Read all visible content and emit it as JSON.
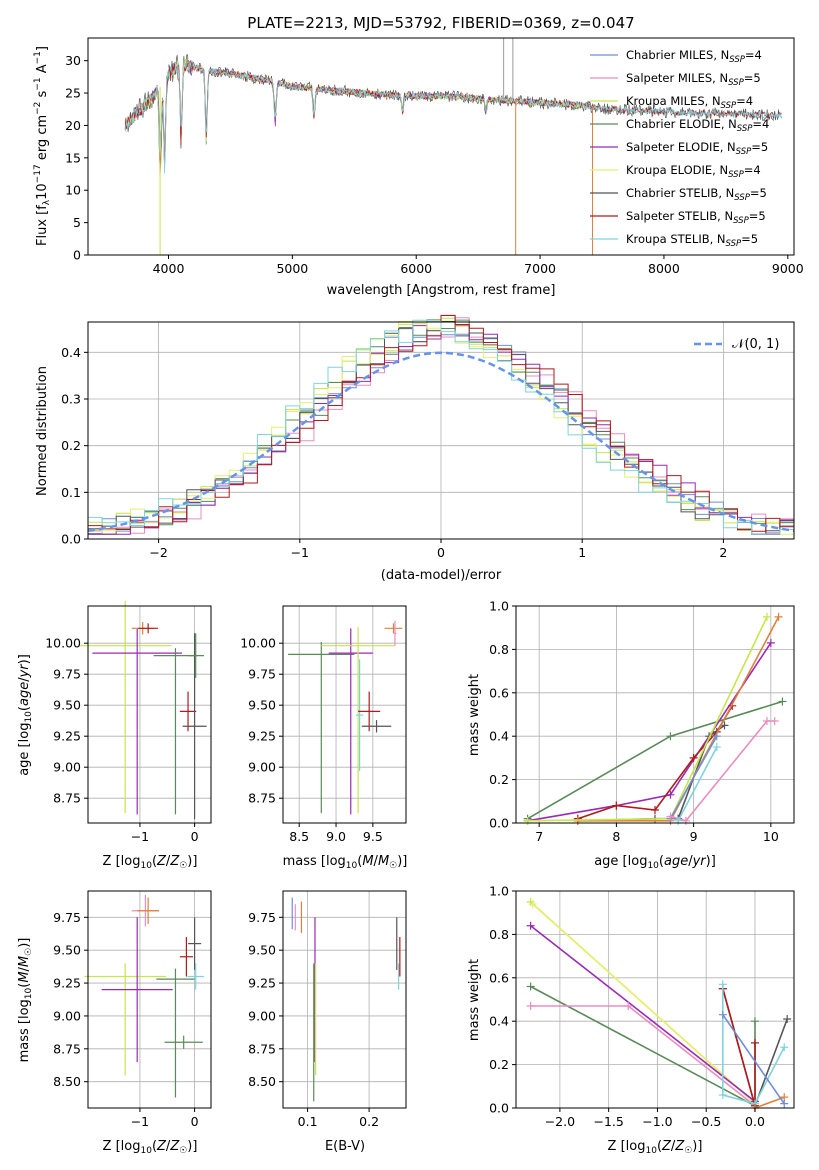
{
  "title": "PLATE=2213, MJD=53792, FIBERID=0369, z=0.047",
  "colors": {
    "chabrier_miles": "#6d8fd6",
    "salpeter_miles": "#e88ec0",
    "kroupa_miles": "#c6e64a",
    "chabrier_elodie": "#5a8a5a",
    "salpeter_elodie": "#9b29b5",
    "kroupa_elodie": "#e8ee70",
    "chabrier_stelib": "#555555",
    "salpeter_stelib": "#b11b1b",
    "kroupa_stelib": "#7fd3dc",
    "orange_model": "#e0803a",
    "gaussian": "#6495ed",
    "grid": "#b0b0b0"
  },
  "chart_data": [
    {
      "id": "spectrum",
      "type": "line",
      "title": "PLATE=2213, MJD=53792, FIBERID=0369, z=0.047",
      "xlabel": "wavelength [Angstrom, rest frame]",
      "ylabel": "Flux [f_λ 10^-17 erg cm^-2 s^-1 A^-1]",
      "xlim": [
        3350,
        9050
      ],
      "ylim": [
        0,
        33.5
      ],
      "xticks": [
        4000,
        5000,
        6000,
        7000,
        8000,
        9000
      ],
      "yticks": [
        0,
        5,
        10,
        15,
        20,
        25,
        30
      ],
      "legend": "top-right",
      "series": [
        {
          "name": "Chabrier MILES, N_SSP=4",
          "color": "#6d8fd6"
        },
        {
          "name": "Salpeter MILES, N_SSP=5",
          "color": "#e88ec0"
        },
        {
          "name": "Kroupa MILES, N_SSP=4",
          "color": "#c6e64a"
        },
        {
          "name": "Chabrier ELODIE, N_SSP=4",
          "color": "#5a8a5a"
        },
        {
          "name": "Salpeter ELODIE, N_SSP=5",
          "color": "#9b29b5"
        },
        {
          "name": "Kroupa ELODIE, N_SSP=4",
          "color": "#e8ee70"
        },
        {
          "name": "Chabrier STELIB, N_SSP=5",
          "color": "#555555"
        },
        {
          "name": "Salpeter STELIB, N_SSP=5",
          "color": "#b11b1b"
        },
        {
          "name": "Kroupa STELIB, N_SSP=5",
          "color": "#7fd3dc"
        }
      ],
      "continuum": [
        [
          3650,
          20
        ],
        [
          3780,
          22.5
        ],
        [
          3900,
          25
        ],
        [
          4000,
          28
        ],
        [
          4100,
          29.5
        ],
        [
          4300,
          28.5
        ],
        [
          4500,
          28
        ],
        [
          4800,
          27
        ],
        [
          5000,
          26
        ],
        [
          5300,
          25.5
        ],
        [
          5600,
          25
        ],
        [
          6000,
          24.5
        ],
        [
          6300,
          24.5
        ],
        [
          6600,
          24
        ],
        [
          7000,
          23.5
        ],
        [
          7400,
          23
        ]
      ],
      "red_tail": [
        [
          7400,
          22.7
        ],
        [
          7700,
          22.4
        ],
        [
          8100,
          22
        ],
        [
          8500,
          21.8
        ],
        [
          8900,
          21.6
        ]
      ],
      "absorptions": [
        [
          3934,
          12
        ],
        [
          3969,
          13
        ],
        [
          4102,
          17
        ],
        [
          4305,
          17
        ],
        [
          4861,
          20
        ],
        [
          5175,
          21
        ],
        [
          5890,
          22
        ],
        [
          6563,
          22
        ]
      ],
      "spikes": [
        [
          3932,
          0
        ],
        [
          6803,
          0
        ],
        [
          7423,
          0
        ]
      ],
      "emission_spikes": [
        [
          6705,
          33.5
        ],
        [
          6780,
          33.5
        ]
      ]
    },
    {
      "id": "residuals",
      "type": "step",
      "xlabel": "(data-model)/error",
      "ylabel": "Normed distribution",
      "xlim": [
        -2.5,
        2.5
      ],
      "ylim": [
        0,
        0.465
      ],
      "xticks": [
        -2,
        -1,
        0,
        1,
        2
      ],
      "yticks": [
        0.0,
        0.1,
        0.2,
        0.3,
        0.4
      ],
      "legend": "top-right",
      "gaussian_label": "𝒩(0, 1)",
      "bin_width": 0.1
    },
    {
      "id": "age_vs_Z",
      "type": "errorbar",
      "xlabel": "Z [log10(Z/Z☉)]",
      "ylabel": "age [log10(age/yr)]",
      "xlim": [
        -1.95,
        0.3
      ],
      "ylim": [
        8.55,
        10.3
      ],
      "xticks": [
        -1,
        0
      ],
      "yticks": [
        8.75,
        9.0,
        9.25,
        9.5,
        9.75,
        10.0
      ],
      "points": [
        {
          "x": -1.27,
          "y": 9.98,
          "xerr": 0.85,
          "yerr": 0.36,
          "ylo": 1.35,
          "color": "#c6e64a"
        },
        {
          "x": -1.05,
          "y": 9.92,
          "xerr": 0.82,
          "yerr": 0.2,
          "ylo": 1.3,
          "color": "#9b29b5"
        },
        {
          "x": -0.95,
          "y": 10.12,
          "xerr": 0.2,
          "yerr": 0.05,
          "color": "#e0803a"
        },
        {
          "x": -0.85,
          "y": 10.12,
          "xerr": 0.18,
          "yerr": 0.04,
          "color": "#b11b1b"
        },
        {
          "x": -0.35,
          "y": 9.9,
          "xerr": 0.4,
          "yerr": 0.06,
          "ylo": 1.28,
          "color": "#5a8a5a"
        },
        {
          "x": -0.12,
          "y": 9.45,
          "xerr": 0.15,
          "yerr": 0.16,
          "color": "#b11b1b"
        },
        {
          "x": 0.0,
          "y": 9.33,
          "xerr": 0.22,
          "yerr": 0.75,
          "color": "#555555"
        },
        {
          "x": 0.02,
          "y": 9.9,
          "xerr": 0.15,
          "yerr": 0.18,
          "color": "#5a8a5a"
        }
      ]
    },
    {
      "id": "age_vs_mass",
      "type": "errorbar",
      "xlabel": "mass [log10(M/M☉)]",
      "xlim": [
        8.28,
        9.95
      ],
      "ylim": [
        8.55,
        10.3
      ],
      "xticks": [
        8.5,
        9.0,
        9.5
      ],
      "yticks": [
        8.75,
        9.0,
        9.25,
        9.5,
        9.75,
        10.0
      ],
      "points": [
        {
          "x": 8.8,
          "y": 9.91,
          "xerr": 0.45,
          "yerr": 0.1,
          "ylo": 1.28,
          "color": "#5a8a5a"
        },
        {
          "x": 9.2,
          "y": 9.92,
          "xerr": 0.3,
          "yerr": 0.2,
          "ylo": 1.3,
          "color": "#9b29b5"
        },
        {
          "x": 9.3,
          "y": 9.98,
          "xerr": 0.5,
          "yerr": 0.15,
          "ylo": 1.35,
          "color": "#c6e64a"
        },
        {
          "x": 9.32,
          "y": 9.42,
          "xerr": 0.05,
          "yerr": 0.45,
          "color": "#7fd3dc"
        },
        {
          "x": 9.45,
          "y": 9.45,
          "xerr": 0.15,
          "yerr": 0.16,
          "color": "#b11b1b"
        },
        {
          "x": 9.55,
          "y": 9.33,
          "xerr": 0.2,
          "yerr": 0.05,
          "color": "#555555"
        },
        {
          "x": 9.78,
          "y": 10.12,
          "xerr": 0.12,
          "yerr": 0.04,
          "color": "#e0803a"
        },
        {
          "x": 9.8,
          "y": 10.08,
          "xerr": 0.02,
          "yerr": 0.1,
          "color": "#e88ec0"
        }
      ]
    },
    {
      "id": "massweight_vs_age",
      "type": "line",
      "xlabel": "age [log10(age/yr)]",
      "ylabel": "mass weight",
      "xlim": [
        6.7,
        10.3
      ],
      "ylim": [
        0,
        1.0
      ],
      "xticks": [
        7,
        8,
        9,
        10
      ],
      "yticks": [
        0.0,
        0.2,
        0.4,
        0.6,
        0.8,
        1.0
      ],
      "series": [
        {
          "color": "#5a8a5a",
          "x": [
            6.85,
            8.7,
            10.15
          ],
          "y": [
            0.02,
            0.4,
            0.56
          ]
        },
        {
          "color": "#9b29b5",
          "x": [
            6.85,
            8.0,
            8.7,
            10.0
          ],
          "y": [
            0.01,
            0.08,
            0.13,
            0.83
          ]
        },
        {
          "color": "#b11b1b",
          "x": [
            7.5,
            8.0,
            8.5,
            9.0,
            9.3,
            9.5
          ],
          "y": [
            0.02,
            0.08,
            0.06,
            0.3,
            0.42,
            0.54
          ]
        },
        {
          "color": "#555555",
          "x": [
            7.5,
            8.5,
            8.8,
            9.2,
            9.4
          ],
          "y": [
            0.01,
            0.02,
            0.02,
            0.4,
            0.45
          ]
        },
        {
          "color": "#e0803a",
          "x": [
            7.5,
            8.7,
            10.1
          ],
          "y": [
            0.01,
            0.01,
            0.95
          ]
        },
        {
          "color": "#c6e64a",
          "x": [
            6.85,
            8.7,
            9.95
          ],
          "y": [
            0.01,
            0.02,
            0.95
          ]
        },
        {
          "color": "#6d8fd6",
          "x": [
            8.7,
            9.3
          ],
          "y": [
            0.02,
            0.4
          ]
        },
        {
          "color": "#e88ec0",
          "x": [
            8.7,
            8.9,
            9.95,
            10.05
          ],
          "y": [
            0.03,
            0.01,
            0.47,
            0.47
          ]
        },
        {
          "color": "#7fd3dc",
          "x": [
            8.8,
            9.3
          ],
          "y": [
            0.01,
            0.35
          ]
        }
      ]
    },
    {
      "id": "mass_vs_Z",
      "type": "errorbar",
      "xlabel": "Z [log10(Z/Z☉)]",
      "ylabel": "mass [log10(M/M☉)]",
      "xlim": [
        -1.95,
        0.3
      ],
      "ylim": [
        8.3,
        9.95
      ],
      "xticks": [
        -1,
        0
      ],
      "yticks": [
        8.5,
        8.75,
        9.0,
        9.25,
        9.5,
        9.75
      ],
      "points": [
        {
          "x": -1.27,
          "y": 9.3,
          "xerr": 0.75,
          "yerr": 0.1,
          "ylo": 0.75,
          "color": "#c6e64a"
        },
        {
          "x": -1.05,
          "y": 9.2,
          "xerr": 0.65,
          "yerr": 0.55,
          "color": "#9b29b5"
        },
        {
          "x": -0.9,
          "y": 9.8,
          "xerr": 0.25,
          "yerr": 0.12,
          "color": "#e88ec0"
        },
        {
          "x": -0.85,
          "y": 9.8,
          "xerr": 0.2,
          "yerr": 0.1,
          "color": "#e0803a"
        },
        {
          "x": -0.35,
          "y": 9.28,
          "xerr": 0.35,
          "yerr": 0.08,
          "ylo": 0.9,
          "color": "#5a8a5a"
        },
        {
          "x": -0.2,
          "y": 8.8,
          "xerr": 0.35,
          "yerr": 0.05,
          "color": "#5a8a5a"
        },
        {
          "x": -0.15,
          "y": 9.45,
          "xerr": 0.12,
          "yerr": 0.15,
          "color": "#b11b1b"
        },
        {
          "x": 0.0,
          "y": 9.55,
          "xerr": 0.12,
          "yerr": 0.2,
          "color": "#555555"
        },
        {
          "x": 0.02,
          "y": 9.3,
          "xerr": 0.15,
          "yerr": 0.1,
          "color": "#7fd3dc"
        }
      ]
    },
    {
      "id": "mass_vs_EBV",
      "type": "errorbar",
      "xlabel": "E(B-V)",
      "xlim": [
        0.06,
        0.26
      ],
      "ylim": [
        8.3,
        9.95
      ],
      "xticks": [
        0.1,
        0.2
      ],
      "yticks": [
        8.5,
        8.75,
        9.0,
        9.25,
        9.5,
        9.75
      ],
      "points": [
        {
          "x": 0.075,
          "y": 9.78,
          "yerr": 0.12,
          "color": "#6d8fd6"
        },
        {
          "x": 0.08,
          "y": 9.75,
          "yerr": 0.1,
          "color": "#e88ec0"
        },
        {
          "x": 0.09,
          "y": 9.75,
          "yerr": 0.12,
          "color": "#e0803a"
        },
        {
          "x": 0.11,
          "y": 9.3,
          "yerr": 0.1,
          "ylo": 0.95,
          "color": "#5a8a5a"
        },
        {
          "x": 0.112,
          "y": 9.2,
          "yerr": 0.55,
          "color": "#9b29b5"
        },
        {
          "x": 0.113,
          "y": 9.3,
          "yerr": 0.1,
          "ylo": 0.75,
          "color": "#c6e64a"
        },
        {
          "x": 0.245,
          "y": 9.55,
          "yerr": 0.2,
          "color": "#555555"
        },
        {
          "x": 0.248,
          "y": 9.3,
          "yerr": 0.1,
          "color": "#7fd3dc"
        },
        {
          "x": 0.25,
          "y": 9.45,
          "yerr": 0.15,
          "color": "#b11b1b"
        }
      ]
    },
    {
      "id": "massweight_vs_Z",
      "type": "line",
      "xlabel": "Z [log10(Z/Z☉)]",
      "ylabel": "mass weight",
      "xlim": [
        -2.45,
        0.4
      ],
      "ylim": [
        0,
        1.0
      ],
      "xticks": [
        -2.0,
        -1.5,
        -1.0,
        -0.5,
        0.0
      ],
      "yticks": [
        0.0,
        0.2,
        0.4,
        0.6,
        0.8,
        1.0
      ],
      "series": [
        {
          "color": "#c6e64a",
          "x": [
            -2.3,
            0.0
          ],
          "y": [
            0.95,
            0.02
          ]
        },
        {
          "color": "#e8ee70",
          "x": [
            -2.28,
            -0.02
          ],
          "y": [
            0.94,
            0.03
          ]
        },
        {
          "color": "#9b29b5",
          "x": [
            -2.3,
            0.0
          ],
          "y": [
            0.84,
            0.03
          ]
        },
        {
          "color": "#5a8a5a",
          "x": [
            -2.3,
            0.0,
            0.0
          ],
          "y": [
            0.56,
            0.01,
            0.4
          ]
        },
        {
          "color": "#e88ec0",
          "x": [
            -2.3,
            -1.3,
            0.0
          ],
          "y": [
            0.47,
            0.47,
            0.01
          ]
        },
        {
          "color": "#555555",
          "x": [
            -0.33,
            0.0,
            0.33
          ],
          "y": [
            0.55,
            0.01,
            0.41
          ]
        },
        {
          "color": "#b11b1b",
          "x": [
            -0.33,
            0.0,
            0.0
          ],
          "y": [
            0.55,
            0.01,
            0.3
          ]
        },
        {
          "color": "#7fd3dc",
          "x": [
            -0.33,
            -0.33,
            0.0,
            0.3
          ],
          "y": [
            0.57,
            0.06,
            0.02,
            0.28
          ]
        },
        {
          "color": "#e0803a",
          "x": [
            0.0,
            0.3
          ],
          "y": [
            0.0,
            0.05
          ]
        },
        {
          "color": "#6d8fd6",
          "x": [
            -0.33,
            0.3
          ],
          "y": [
            0.43,
            0.02
          ]
        }
      ]
    }
  ]
}
